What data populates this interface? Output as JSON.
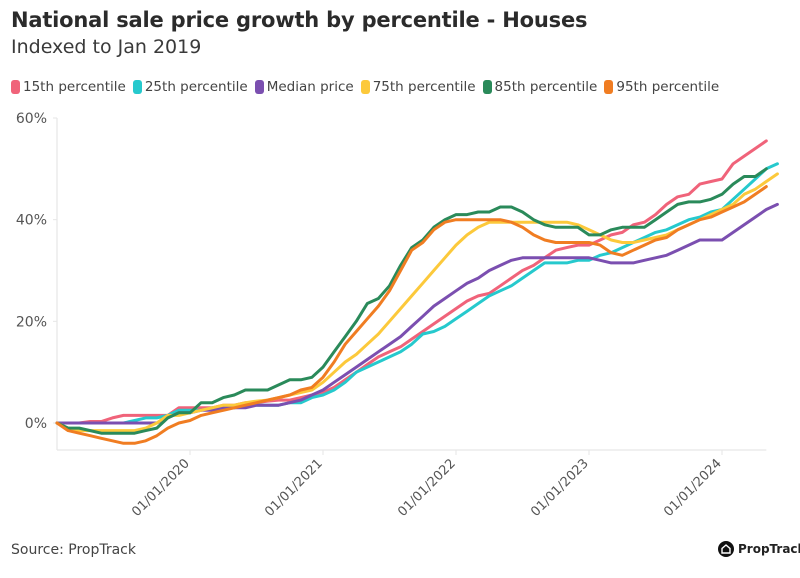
{
  "chart_data": {
    "type": "line",
    "title": "National sale price growth by percentile - Houses",
    "subtitle": "Indexed to Jan 2019",
    "xlabel": "",
    "ylabel": "",
    "ylim": [
      -5,
      60
    ],
    "yticks": [
      0,
      20,
      40,
      60
    ],
    "ytick_labels": [
      "0%",
      "20%",
      "40%",
      "60%"
    ],
    "x_start": "2019-01",
    "x_freq": "monthly",
    "xticks_month_index": [
      12,
      24,
      36,
      48,
      60
    ],
    "xtick_labels": [
      "01/01/2020",
      "01/01/2021",
      "01/01/2022",
      "01/01/2023",
      "01/01/2024"
    ],
    "grid": false,
    "legend": "top-left",
    "series": [
      {
        "name": "15th percentile",
        "color": "#f0637a",
        "values": [
          0,
          0,
          0,
          0.3,
          0.3,
          1,
          1.5,
          1.5,
          1.5,
          1.5,
          1.5,
          3,
          3,
          3,
          3,
          3.5,
          3.5,
          4,
          4,
          4.3,
          4.5,
          4.5,
          5,
          5.5,
          6,
          7,
          8.5,
          10,
          11.5,
          13,
          14,
          15,
          16.5,
          18,
          19.5,
          21,
          22.5,
          24,
          25,
          25.5,
          27,
          28.5,
          30,
          31,
          32.5,
          34,
          34.5,
          35,
          35,
          36,
          37,
          37.5,
          39,
          39.5,
          41,
          43,
          44.5,
          45,
          47,
          47.5,
          48,
          51,
          52.5,
          54,
          55.5
        ]
      },
      {
        "name": "25th percentile",
        "color": "#26c9cd",
        "values": [
          0,
          0,
          0,
          0,
          0,
          0,
          0,
          0.5,
          1,
          1,
          1.5,
          2.5,
          2.5,
          2.5,
          3,
          3,
          3,
          3.5,
          3.5,
          3.5,
          3.5,
          4,
          4,
          5,
          5.5,
          6.5,
          8,
          10,
          11,
          12,
          13,
          14,
          15.5,
          17.5,
          18,
          19,
          20.5,
          22,
          23.5,
          25,
          26,
          27,
          28.5,
          30,
          31.5,
          31.5,
          31.5,
          32,
          32,
          33,
          33.5,
          34.5,
          35.5,
          36.5,
          37.5,
          38,
          39,
          40,
          40.5,
          41.5,
          42,
          44,
          46,
          48,
          50,
          51
        ]
      },
      {
        "name": "Median price",
        "color": "#7b4fb0",
        "values": [
          0,
          0,
          0,
          0,
          0,
          0,
          0,
          0,
          0,
          0,
          1,
          2,
          2,
          2.5,
          2.5,
          3,
          3,
          3,
          3.5,
          3.5,
          3.5,
          4,
          4.5,
          5.5,
          6.5,
          8,
          9.5,
          11,
          12.5,
          14,
          15.5,
          17,
          19,
          21,
          23,
          24.5,
          26,
          27.5,
          28.5,
          30,
          31,
          32,
          32.5,
          32.5,
          32.5,
          32.5,
          32.5,
          32.5,
          32.5,
          32,
          31.5,
          31.5,
          31.5,
          32,
          32.5,
          33,
          34,
          35,
          36,
          36,
          36,
          37.5,
          39,
          40.5,
          42,
          43
        ]
      },
      {
        "name": "75th percentile",
        "color": "#fcc93b",
        "values": [
          0,
          -1,
          -1.5,
          -1.5,
          -1.5,
          -1.5,
          -1.5,
          -1.5,
          -1,
          0,
          1.5,
          1.5,
          2,
          2.5,
          3,
          3.5,
          3.5,
          4,
          4.3,
          4.5,
          5,
          5.5,
          6,
          6.5,
          8,
          10,
          12,
          13.5,
          15.5,
          17.5,
          20,
          22.5,
          25,
          27.5,
          30,
          32.5,
          35,
          37,
          38.5,
          39.5,
          39.5,
          39.5,
          39.5,
          39.5,
          39.5,
          39.5,
          39.5,
          39,
          38,
          37,
          36,
          35.5,
          35.5,
          36,
          36.5,
          37,
          38,
          39,
          40,
          41,
          42,
          43,
          45,
          46,
          47.5,
          49
        ]
      },
      {
        "name": "85th percentile",
        "color": "#2a8a5a",
        "values": [
          0,
          -1,
          -1,
          -1.5,
          -2,
          -2,
          -2,
          -2,
          -1.5,
          -1,
          1,
          2,
          2,
          4,
          4,
          5,
          5.5,
          6.5,
          6.5,
          6.5,
          7.5,
          8.5,
          8.5,
          9,
          11,
          14,
          17,
          20,
          23.5,
          24.5,
          27,
          31,
          34.5,
          36,
          38.5,
          40,
          41,
          41,
          41.5,
          41.5,
          42.5,
          42.5,
          41.5,
          40,
          39,
          38.5,
          38.5,
          38.5,
          37,
          37,
          38,
          38.5,
          38.5,
          38.5,
          40,
          41.5,
          43,
          43.5,
          43.5,
          44,
          45,
          47,
          48.5,
          48.5,
          50
        ]
      },
      {
        "name": "95th percentile",
        "color": "#f07d22",
        "values": [
          0,
          -1.5,
          -2,
          -2.5,
          -3,
          -3.5,
          -4,
          -4,
          -3.5,
          -2.5,
          -1,
          0,
          0.5,
          1.5,
          2,
          2.5,
          3,
          3.5,
          4,
          4.5,
          5,
          5.5,
          6.5,
          7,
          9,
          12,
          15.5,
          18,
          20.5,
          23,
          26,
          30,
          34,
          35.5,
          38,
          39.5,
          40,
          40,
          40,
          40,
          40,
          39.5,
          38.5,
          37,
          36,
          35.5,
          35.5,
          35.5,
          35.5,
          35,
          33.5,
          33,
          34,
          35,
          36,
          36.5,
          38,
          39,
          40,
          40.5,
          41.5,
          42.5,
          43.5,
          45,
          46.5
        ]
      }
    ]
  },
  "header": {
    "title": "National sale price growth by percentile - Houses",
    "subtitle": "Indexed to Jan 2019"
  },
  "footer": {
    "source": "Source: PropTrack",
    "brand": "PropTrack",
    "brand_icon": "house-icon"
  }
}
